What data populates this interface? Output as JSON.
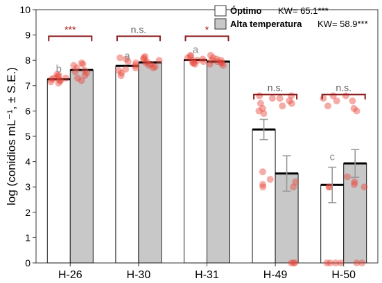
{
  "chart_data": {
    "type": "bar",
    "categories": [
      "H-26",
      "H-30",
      "H-31",
      "H-49",
      "H-50"
    ],
    "ylabel": "log (conidios mL⁻¹, ± S.E.)",
    "ylim": [
      0,
      10
    ],
    "yticks": [
      0,
      1,
      2,
      3,
      4,
      5,
      6,
      7,
      8,
      9,
      10
    ],
    "series": [
      {
        "name": "Óptimo",
        "values": [
          7.25,
          7.78,
          8.02,
          5.27,
          3.08
        ],
        "errors": [
          null,
          null,
          null,
          0.4,
          0.7
        ],
        "points": [
          [
            7.1,
            7.2,
            7.25,
            7.3,
            7.35,
            7.4,
            7.15,
            7.3,
            7.2,
            7.45
          ],
          [
            7.4,
            7.6,
            7.8,
            7.9,
            8.1,
            8.05,
            7.7,
            7.5,
            7.65,
            7.95
          ],
          [
            7.9,
            8.0,
            8.1,
            7.95,
            8.15,
            8.05,
            7.85,
            8.2,
            8.0,
            7.9
          ],
          [
            6.5,
            6.3,
            6.1,
            5.9,
            3.6,
            3.3,
            3.0,
            3.1,
            6.6,
            6.0
          ],
          [
            6.6,
            6.5,
            3.0,
            3.0,
            0.0,
            0.0,
            0.0,
            6.4,
            6.2,
            0.0
          ]
        ],
        "fill": "#ffffff"
      },
      {
        "name": "Alta temperatura",
        "values": [
          7.62,
          7.92,
          7.95,
          3.53,
          3.93
        ],
        "errors": [
          null,
          null,
          null,
          0.7,
          0.55
        ],
        "points": [
          [
            7.3,
            7.5,
            7.6,
            7.8,
            7.9,
            7.7,
            7.4,
            7.55,
            7.85,
            7.2
          ],
          [
            7.7,
            7.9,
            8.1,
            8.0,
            7.8,
            8.15,
            7.85,
            7.95,
            8.05,
            7.75
          ],
          [
            7.8,
            7.9,
            8.0,
            8.1,
            7.95,
            8.2,
            7.85,
            8.05,
            7.9,
            8.0
          ],
          [
            6.6,
            6.5,
            6.2,
            6.3,
            3.0,
            3.2,
            0.0,
            0.0,
            0.0,
            6.4
          ],
          [
            6.6,
            6.4,
            6.0,
            6.1,
            3.4,
            3.0,
            3.1,
            0.0,
            0.0,
            3.2
          ]
        ],
        "fill": "#c8c8c8"
      }
    ],
    "significance": [
      "***",
      "n.s.",
      "*",
      "n.s.",
      "n.s."
    ],
    "letters": [
      "b",
      "a",
      "a",
      "",
      "c"
    ],
    "letter_series": [
      0,
      0,
      0,
      0,
      0
    ],
    "legend_kw": [
      "KW= 65.1***",
      "KW= 58.9***"
    ],
    "colors": {
      "points": "#e8463c",
      "bracket": "#8b1a1a",
      "bar_stroke": "#1a1a1a",
      "optimo_fill": "#ffffff",
      "alta_fill": "#c8c8c8",
      "letter": "#8c8c8c"
    },
    "legend_position": "top-right",
    "grid": false
  }
}
